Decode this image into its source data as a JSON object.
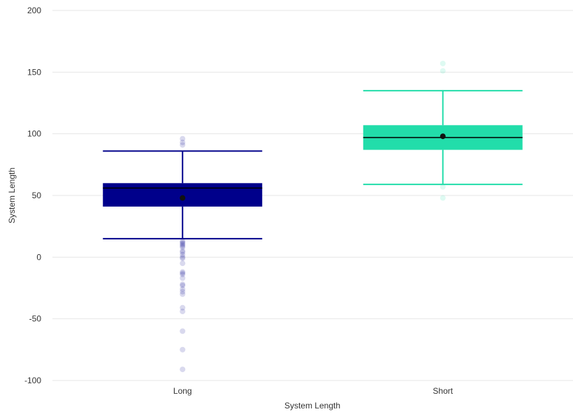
{
  "chart_data": {
    "type": "box",
    "xlabel": "System Length",
    "ylabel": "System Length",
    "ylim": [
      -100,
      200
    ],
    "yticks": [
      -100,
      -50,
      0,
      50,
      100,
      150,
      200
    ],
    "grid": true,
    "categories": [
      "Long",
      "Short"
    ],
    "series": [
      {
        "category": "Long",
        "color": "#00008b",
        "whisker_low": 15,
        "q1": 41,
        "median": 56,
        "q3": 60,
        "whisker_high": 86,
        "mean": 48,
        "outliers": [
          96,
          93,
          91,
          13,
          12,
          11,
          10,
          9,
          8,
          5,
          4,
          2,
          0,
          -1,
          -5,
          -12,
          -13,
          -14,
          -17,
          -22,
          -23,
          -26,
          -28,
          -30,
          -41,
          -44,
          -60,
          -75,
          -91
        ]
      },
      {
        "category": "Short",
        "color": "#22ddaa",
        "whisker_low": 59,
        "q1": 87,
        "median": 97,
        "q3": 107,
        "whisker_high": 135,
        "mean": 98,
        "outliers": [
          157,
          151,
          57,
          48
        ]
      }
    ]
  }
}
